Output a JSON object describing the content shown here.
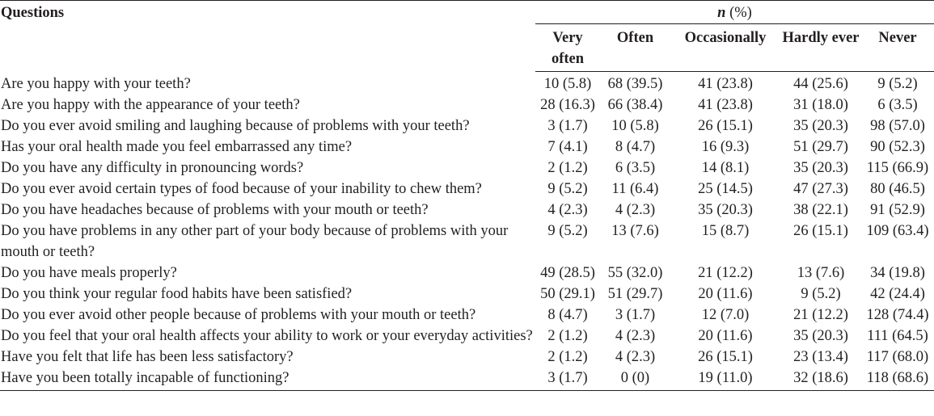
{
  "table": {
    "question_header": "Questions",
    "n_header_symbol": "n",
    "n_header_unit": " (%)",
    "columns": [
      "Very often",
      "Often",
      "Occasionally",
      "Hardly ever",
      "Never"
    ],
    "rows": [
      {
        "question": "Are you happy with your teeth?",
        "values": [
          "10 (5.8)",
          "68 (39.5)",
          "41 (23.8)",
          "44 (25.6)",
          "9 (5.2)"
        ]
      },
      {
        "question": "Are you happy with the appearance of your teeth?",
        "values": [
          "28 (16.3)",
          "66 (38.4)",
          "41 (23.8)",
          "31 (18.0)",
          "6 (3.5)"
        ]
      },
      {
        "question": "Do you ever avoid smiling and laughing because of problems with your teeth?",
        "values": [
          "3 (1.7)",
          "10 (5.8)",
          "26 (15.1)",
          "35 (20.3)",
          "98 (57.0)"
        ]
      },
      {
        "question": "Has your oral health made you feel embarrassed any time?",
        "values": [
          "7 (4.1)",
          "8 (4.7)",
          "16 (9.3)",
          "51 (29.7)",
          "90 (52.3)"
        ]
      },
      {
        "question": "Do you have any difficulty in pronouncing words?",
        "values": [
          "2 (1.2)",
          "6 (3.5)",
          "14 (8.1)",
          "35 (20.3)",
          "115 (66.9)"
        ]
      },
      {
        "question": "Do you ever avoid certain types of food because of your inability to chew them?",
        "values": [
          "9 (5.2)",
          "11 (6.4)",
          "25 (14.5)",
          "47 (27.3)",
          "80 (46.5)"
        ]
      },
      {
        "question": "Do you have headaches because of problems with your mouth or teeth?",
        "values": [
          "4 (2.3)",
          "4 (2.3)",
          "35 (20.3)",
          "38 (22.1)",
          "91 (52.9)"
        ]
      },
      {
        "question": "Do you have problems in any other part of your body because of problems with your mouth or teeth?",
        "values": [
          "9 (5.2)",
          "13 (7.6)",
          "15 (8.7)",
          "26 (15.1)",
          "109 (63.4)"
        ]
      },
      {
        "question": "Do you have meals properly?",
        "values": [
          "49 (28.5)",
          "55 (32.0)",
          "21 (12.2)",
          "13 (7.6)",
          "34 (19.8)"
        ]
      },
      {
        "question": "Do you think your regular food habits have been satisfied?",
        "values": [
          "50 (29.1)",
          "51 (29.7)",
          "20 (11.6)",
          "9 (5.2)",
          "42 (24.4)"
        ]
      },
      {
        "question": "Do you ever avoid other people because of problems with your mouth or teeth?",
        "values": [
          "8 (4.7)",
          "3 (1.7)",
          "12 (7.0)",
          "21 (12.2)",
          "128 (74.4)"
        ]
      },
      {
        "question": "Do you feel that your oral health affects your ability to work or your everyday activities?",
        "values": [
          "2 (1.2)",
          "4 (2.3)",
          "20 (11.6)",
          "35 (20.3)",
          "111 (64.5)"
        ]
      },
      {
        "question": "Have you felt that life has been less satisfactory?",
        "values": [
          "2 (1.2)",
          "4 (2.3)",
          "26 (15.1)",
          "23 (13.4)",
          "117 (68.0)"
        ]
      },
      {
        "question": "Have you been totally incapable of functioning?",
        "values": [
          "3 (1.7)",
          "0 (0)",
          "19 (11.0)",
          "32 (18.6)",
          "118 (68.6)"
        ]
      }
    ]
  }
}
